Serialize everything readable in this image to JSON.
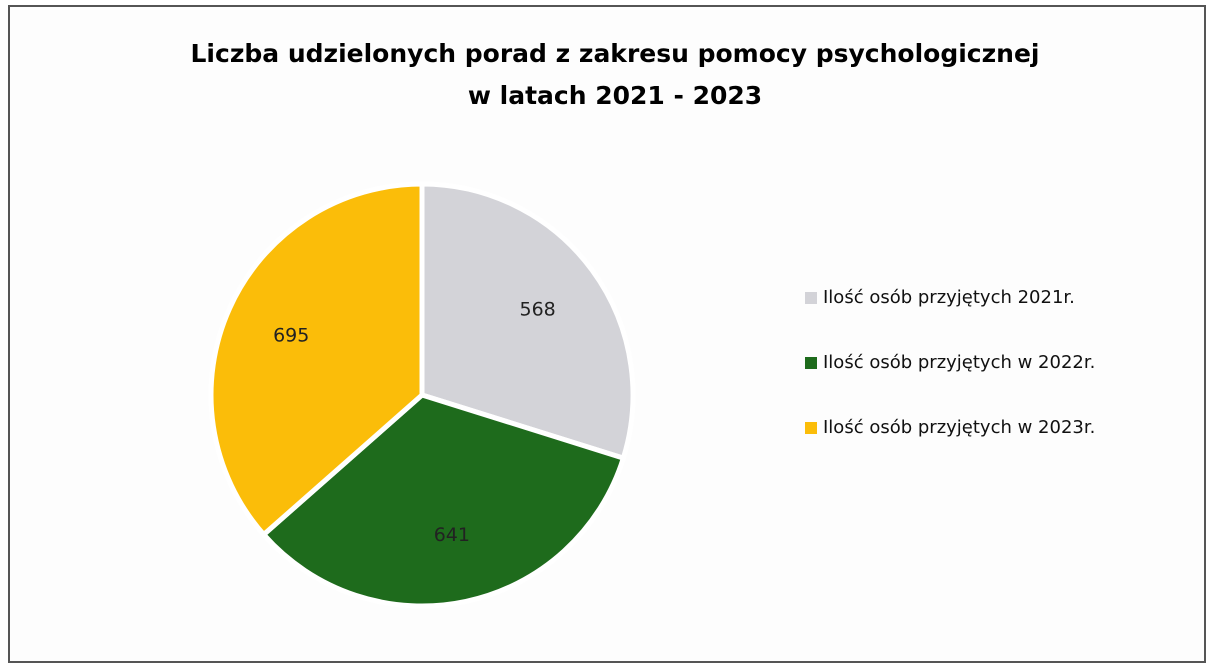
{
  "chart_data": {
    "type": "pie",
    "title": [
      "Liczba udzielonych porad z zakresu pomocy psychologicznej",
      "w latach 2021 - 2023"
    ],
    "categories": [
      "Ilość osób przyjętych 2021r.",
      "Ilość osób przyjętych w 2022r.",
      "Ilość osób przyjętych w 2023r."
    ],
    "values": [
      568,
      641,
      695
    ],
    "colors": [
      "#d3d3d8",
      "#1e6b1c",
      "#fbbd09"
    ]
  }
}
